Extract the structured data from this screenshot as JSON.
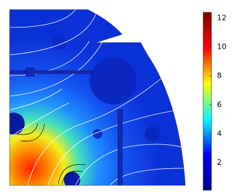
{
  "chart_data": {
    "type": "heatmap",
    "clim": [
      0.1,
      12.4
    ],
    "cticks": [
      2,
      4,
      6,
      8,
      10,
      12
    ],
    "colormap": [
      "#00008f",
      "#0000ff",
      "#00ffff",
      "#ffff00",
      "#ff0000",
      "#800000"
    ]
  }
}
